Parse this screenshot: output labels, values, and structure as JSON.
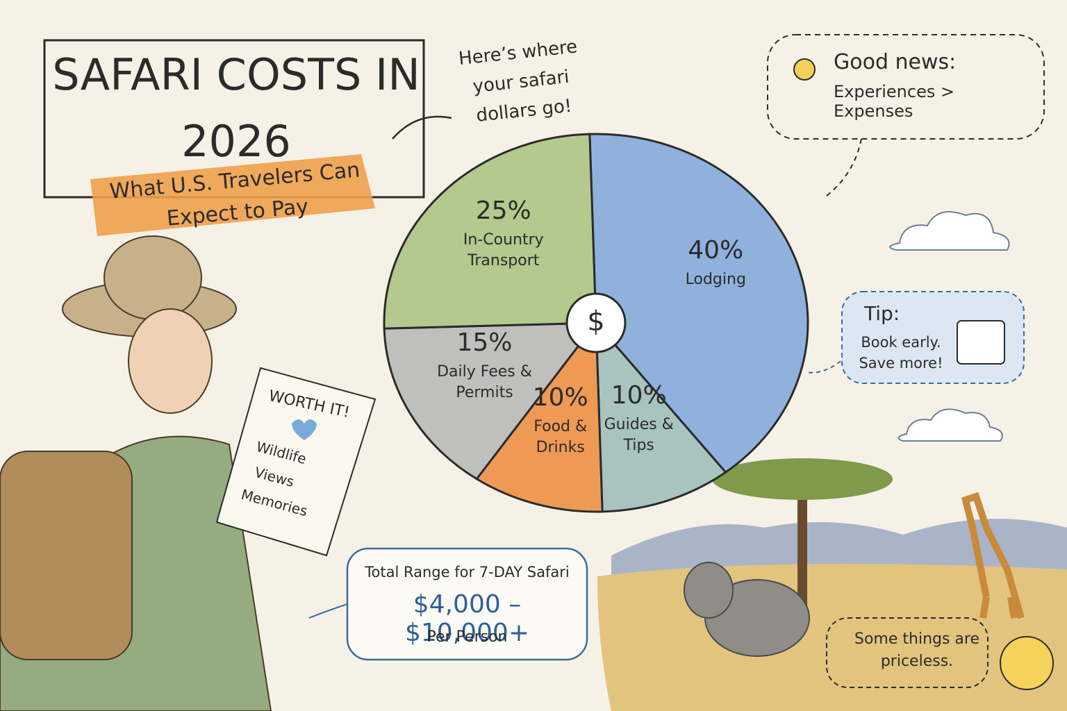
{
  "chart_data": {
    "type": "pie",
    "title": "Safari Costs in 2026",
    "subtitle": "What U.S. Travelers Can Expect to Pay",
    "categories": [
      "Lodging",
      "Guides & Tips",
      "Food & Drinks",
      "Daily Fees & Permits",
      "In-Country Transport"
    ],
    "values": [
      40,
      10,
      10,
      15,
      25
    ],
    "value_labels": [
      "40%",
      "10%",
      "10%",
      "15%",
      "25%"
    ],
    "colors": [
      "#8fb1dc",
      "#a9c3bf",
      "#ee9a55",
      "#bfbfbd",
      "#b3c98e"
    ],
    "annotations": [
      "Here’s where your safari dollars go!",
      "Good news:",
      "Experiences > Expenses",
      "Tip:",
      "Book early. Save more!",
      "WORTH IT!",
      "Wildlife",
      "Views",
      "Memories",
      "Total Range for 7-DAY Safari",
      "$4,000 – $10,000+",
      "Per Person",
      "Some things are priceless.",
      "$"
    ]
  }
}
